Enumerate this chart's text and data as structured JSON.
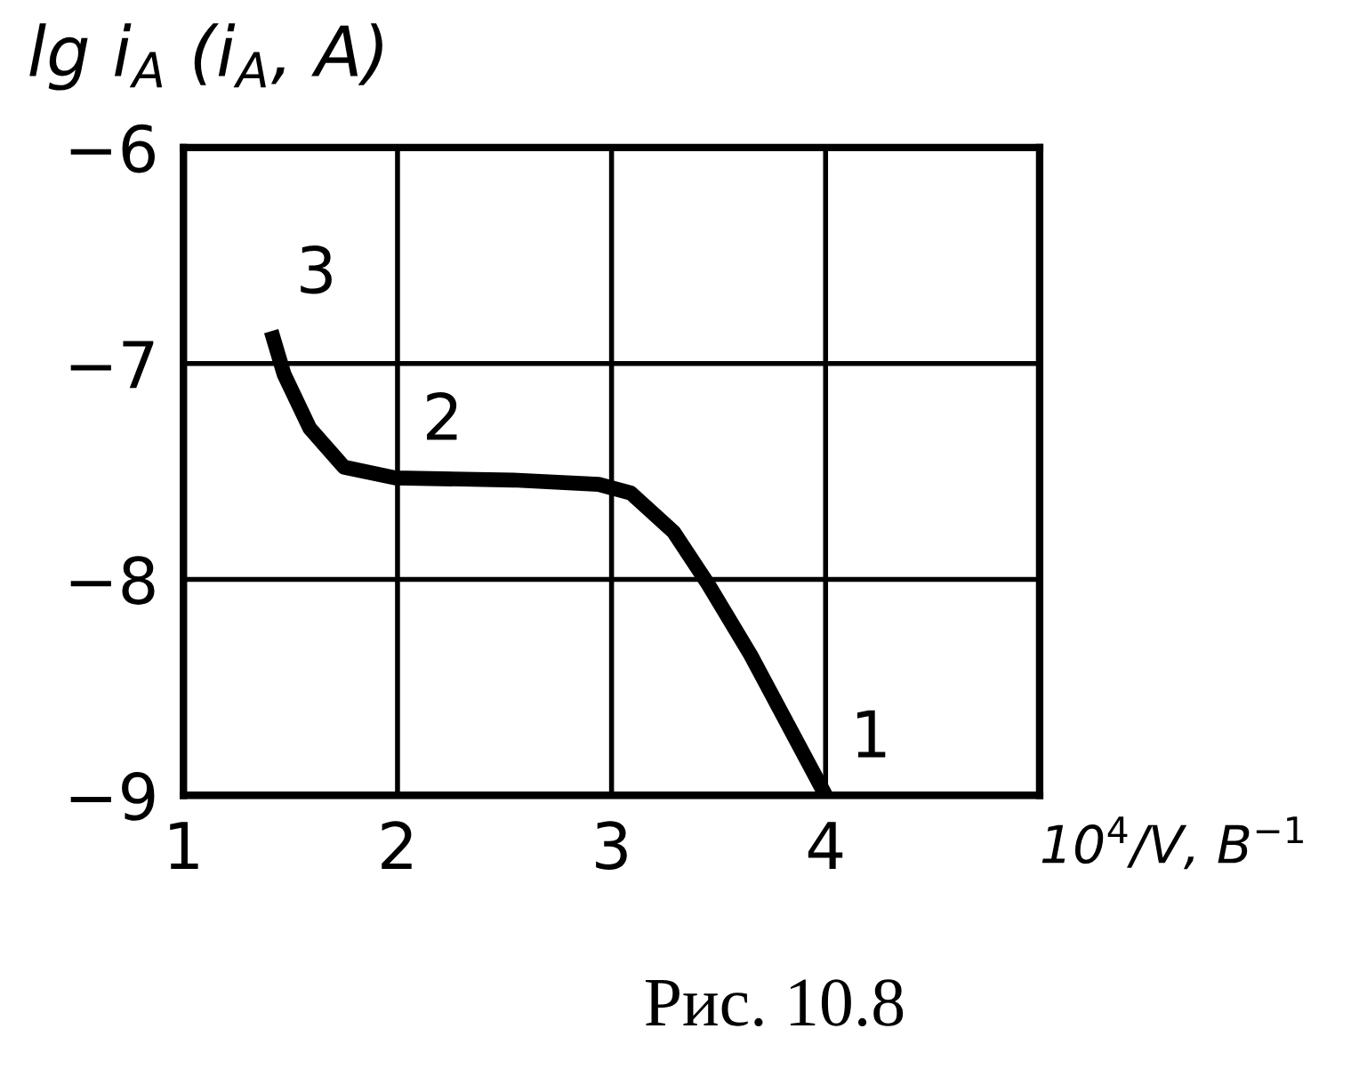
{
  "chart_data": {
    "type": "line",
    "ylabel": "lg i$_{A}$ (i$_{A}$, A)",
    "xlabel": "10$^{4}$/V, В$^{−1}$",
    "x": [
      1.41,
      1.47,
      1.59,
      1.75,
      1.99,
      2.54,
      2.94,
      3.09,
      3.29,
      3.45,
      3.65,
      4.0
    ],
    "series": [
      {
        "color": "#000000",
        "values": [
          -6.85,
          -7.05,
          -7.3,
          -7.48,
          -7.53,
          -7.54,
          -7.56,
          -7.6,
          -7.78,
          -8.02,
          -8.35,
          -9.0
        ]
      }
    ],
    "xlim": [
      1,
      5
    ],
    "xticks": [
      1,
      2,
      3,
      4
    ],
    "ylim": [
      -9,
      -6
    ],
    "yticks": [
      -9,
      -8,
      -7,
      -6
    ],
    "grid": true,
    "annotations": [
      {
        "text": "3",
        "x": 1.41,
        "y": -6.85
      },
      {
        "text": "2",
        "x": 2.0,
        "y": -7.53
      },
      {
        "text": "1",
        "x": 4.0,
        "y": -9.0
      },
      "Рис. 10.8"
    ]
  }
}
